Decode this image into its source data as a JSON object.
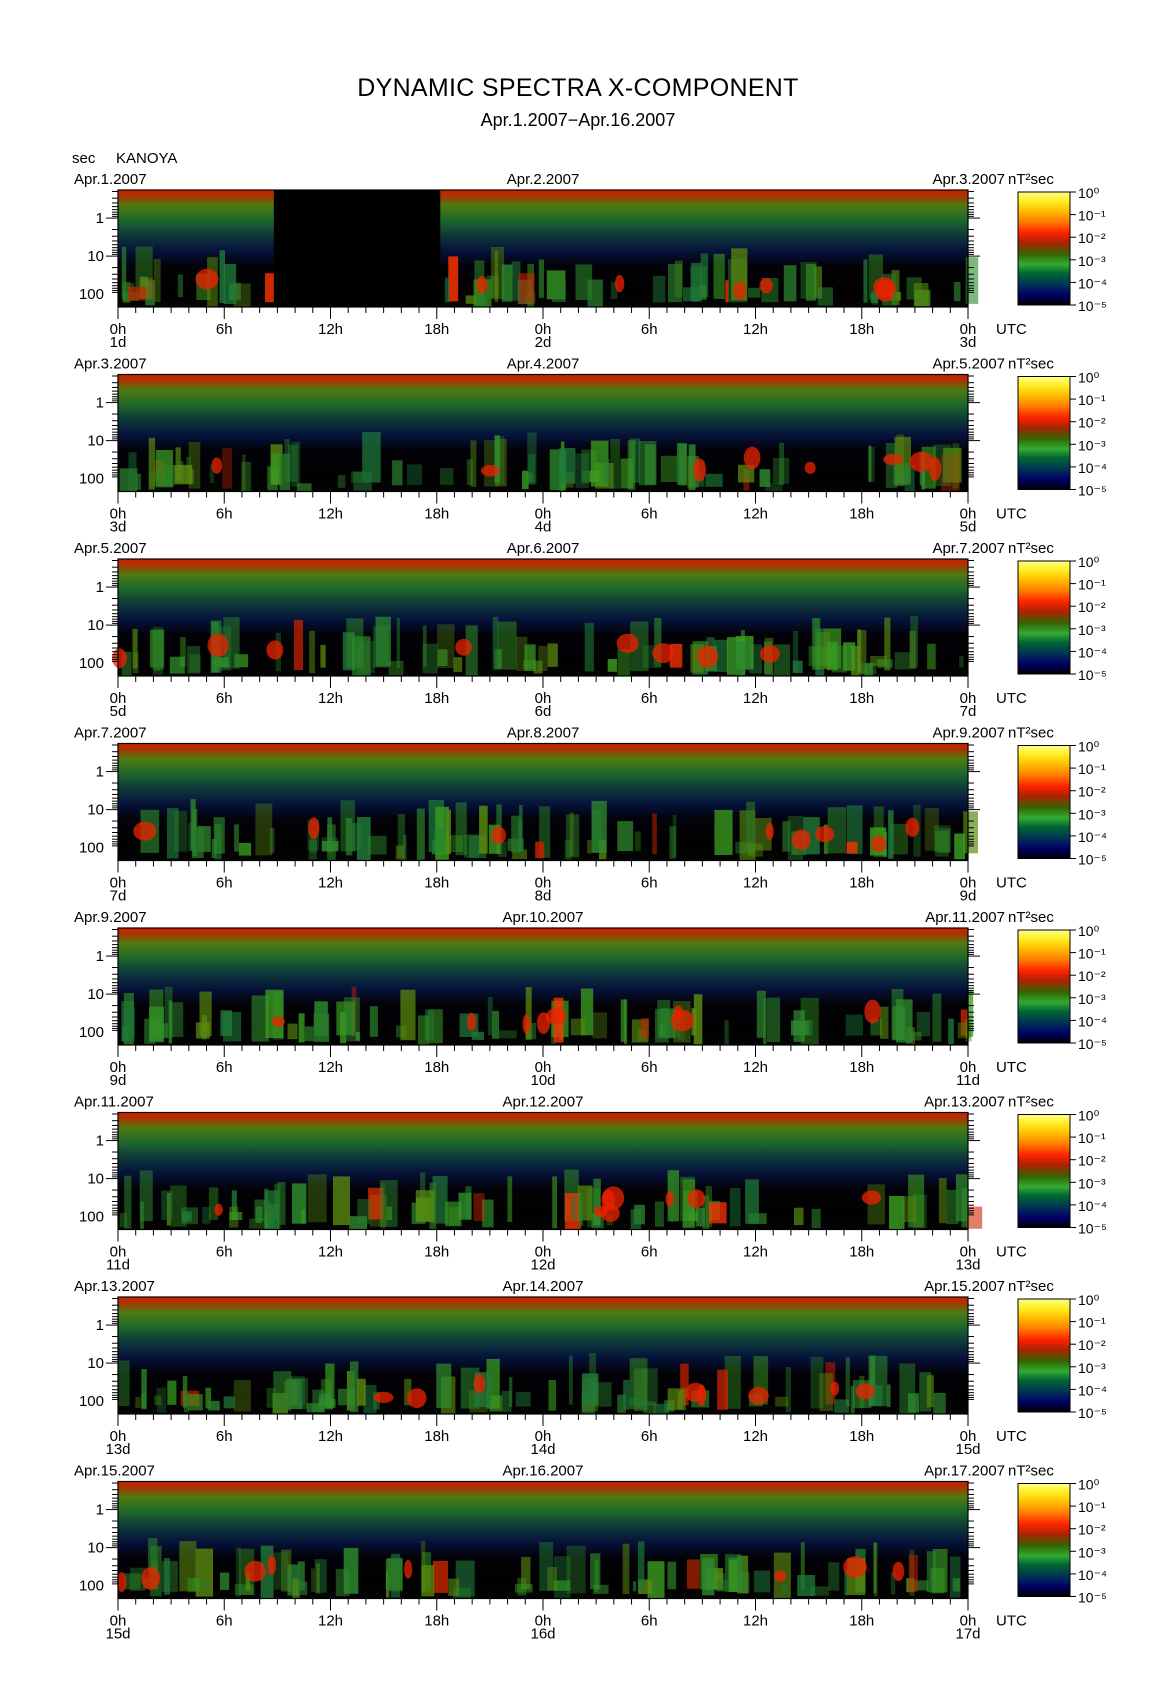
{
  "figure": {
    "title": "DYNAMIC SPECTRA X-COMPONENT",
    "subtitle": "Apr.1.2007−Apr.16.2007",
    "y_unit_label": "sec",
    "station": "KANOYA",
    "colorbar_unit": "nT²sec",
    "time_axis_label": "UTC"
  },
  "chart_data": {
    "type": "heatmap",
    "title": "DYNAMIC SPECTRA X-COMPONENT",
    "subtitle": "Apr.1.2007−Apr.16.2007",
    "xlabel": "UTC",
    "ylabel": "sec",
    "y_scale": "log",
    "y_ticks": [
      "1",
      "10",
      "100"
    ],
    "x_ticks": [
      "0h",
      "6h",
      "12h",
      "18h",
      "0h",
      "6h",
      "12h",
      "18h",
      "0h"
    ],
    "colorbar": {
      "unit": "nT²sec",
      "scale": "log",
      "ticks": [
        "10⁰",
        "10⁻¹",
        "10⁻²",
        "10⁻³",
        "10⁻⁴",
        "10⁻⁵"
      ],
      "colors": [
        "#ffff66",
        "#ffcc00",
        "#ff9900",
        "#ff3300",
        "#cc0000",
        "#aa2200",
        "#336600",
        "#33aa33",
        "#006633",
        "#003344",
        "#000066",
        "#000000"
      ]
    },
    "panels": [
      {
        "left_date": "Apr.1.2007",
        "mid_date": "Apr.2.2007",
        "right_date": "Apr.3.2007",
        "day_labels": [
          "1d",
          "2d",
          "3d"
        ]
      },
      {
        "left_date": "Apr.3.2007",
        "mid_date": "Apr.4.2007",
        "right_date": "Apr.5.2007",
        "day_labels": [
          "3d",
          "4d",
          "5d"
        ]
      },
      {
        "left_date": "Apr.5.2007",
        "mid_date": "Apr.6.2007",
        "right_date": "Apr.7.2007",
        "day_labels": [
          "5d",
          "6d",
          "7d"
        ]
      },
      {
        "left_date": "Apr.7.2007",
        "mid_date": "Apr.8.2007",
        "right_date": "Apr.9.2007",
        "day_labels": [
          "7d",
          "8d",
          "9d"
        ]
      },
      {
        "left_date": "Apr.9.2007",
        "mid_date": "Apr.10.2007",
        "right_date": "Apr.11.2007",
        "day_labels": [
          "9d",
          "10d",
          "11d"
        ]
      },
      {
        "left_date": "Apr.11.2007",
        "mid_date": "Apr.12.2007",
        "right_date": "Apr.13.2007",
        "day_labels": [
          "11d",
          "12d",
          "13d"
        ]
      },
      {
        "left_date": "Apr.13.2007",
        "mid_date": "Apr.14.2007",
        "right_date": "Apr.15.2007",
        "day_labels": [
          "13d",
          "14d",
          "15d"
        ]
      },
      {
        "left_date": "Apr.15.2007",
        "mid_date": "Apr.16.2007",
        "right_date": "Apr.17.2007",
        "day_labels": [
          "15d",
          "16d",
          "17d"
        ]
      }
    ],
    "data_gaps": [
      {
        "panel": 0,
        "from": "Apr.1.2007 8.8h",
        "to": "Apr.1.2007 18.2h"
      }
    ]
  }
}
